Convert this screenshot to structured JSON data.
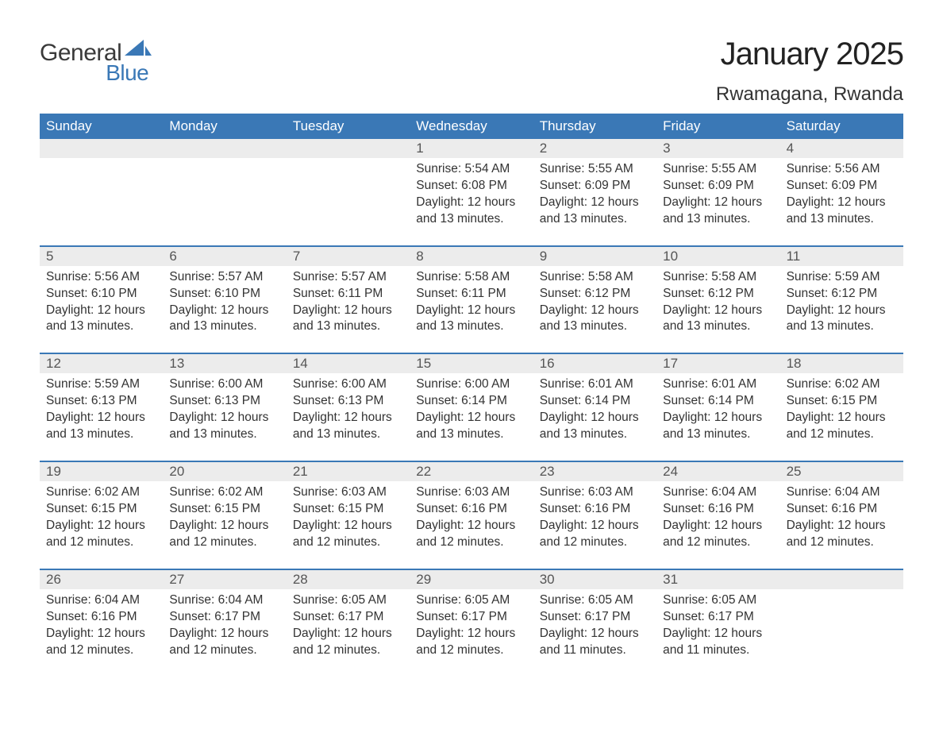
{
  "logo": {
    "word1": "General",
    "word2": "Blue",
    "sail_color": "#3a78b6"
  },
  "title": "January 2025",
  "location": "Rwamagana, Rwanda",
  "colors": {
    "header_bg": "#3a78b6",
    "header_text": "#ffffff",
    "daynum_band_bg": "#ececec",
    "separator": "#3a78b6",
    "body_text": "#333333",
    "page_bg": "#ffffff"
  },
  "weekdays": [
    "Sunday",
    "Monday",
    "Tuesday",
    "Wednesday",
    "Thursday",
    "Friday",
    "Saturday"
  ],
  "layout": {
    "columns": 7,
    "weekday_fontsize": 17,
    "title_fontsize": 40,
    "location_fontsize": 24,
    "daynum_fontsize": 17,
    "body_fontsize": 15.5
  },
  "label_prefixes": {
    "sunrise": "Sunrise: ",
    "sunset": "Sunset: ",
    "daylight": "Daylight: "
  },
  "weeks": [
    [
      null,
      null,
      null,
      {
        "n": "1",
        "sunrise": "5:54 AM",
        "sunset": "6:08 PM",
        "daylight": "12 hours and 13 minutes."
      },
      {
        "n": "2",
        "sunrise": "5:55 AM",
        "sunset": "6:09 PM",
        "daylight": "12 hours and 13 minutes."
      },
      {
        "n": "3",
        "sunrise": "5:55 AM",
        "sunset": "6:09 PM",
        "daylight": "12 hours and 13 minutes."
      },
      {
        "n": "4",
        "sunrise": "5:56 AM",
        "sunset": "6:09 PM",
        "daylight": "12 hours and 13 minutes."
      }
    ],
    [
      {
        "n": "5",
        "sunrise": "5:56 AM",
        "sunset": "6:10 PM",
        "daylight": "12 hours and 13 minutes."
      },
      {
        "n": "6",
        "sunrise": "5:57 AM",
        "sunset": "6:10 PM",
        "daylight": "12 hours and 13 minutes."
      },
      {
        "n": "7",
        "sunrise": "5:57 AM",
        "sunset": "6:11 PM",
        "daylight": "12 hours and 13 minutes."
      },
      {
        "n": "8",
        "sunrise": "5:58 AM",
        "sunset": "6:11 PM",
        "daylight": "12 hours and 13 minutes."
      },
      {
        "n": "9",
        "sunrise": "5:58 AM",
        "sunset": "6:12 PM",
        "daylight": "12 hours and 13 minutes."
      },
      {
        "n": "10",
        "sunrise": "5:58 AM",
        "sunset": "6:12 PM",
        "daylight": "12 hours and 13 minutes."
      },
      {
        "n": "11",
        "sunrise": "5:59 AM",
        "sunset": "6:12 PM",
        "daylight": "12 hours and 13 minutes."
      }
    ],
    [
      {
        "n": "12",
        "sunrise": "5:59 AM",
        "sunset": "6:13 PM",
        "daylight": "12 hours and 13 minutes."
      },
      {
        "n": "13",
        "sunrise": "6:00 AM",
        "sunset": "6:13 PM",
        "daylight": "12 hours and 13 minutes."
      },
      {
        "n": "14",
        "sunrise": "6:00 AM",
        "sunset": "6:13 PM",
        "daylight": "12 hours and 13 minutes."
      },
      {
        "n": "15",
        "sunrise": "6:00 AM",
        "sunset": "6:14 PM",
        "daylight": "12 hours and 13 minutes."
      },
      {
        "n": "16",
        "sunrise": "6:01 AM",
        "sunset": "6:14 PM",
        "daylight": "12 hours and 13 minutes."
      },
      {
        "n": "17",
        "sunrise": "6:01 AM",
        "sunset": "6:14 PM",
        "daylight": "12 hours and 13 minutes."
      },
      {
        "n": "18",
        "sunrise": "6:02 AM",
        "sunset": "6:15 PM",
        "daylight": "12 hours and 12 minutes."
      }
    ],
    [
      {
        "n": "19",
        "sunrise": "6:02 AM",
        "sunset": "6:15 PM",
        "daylight": "12 hours and 12 minutes."
      },
      {
        "n": "20",
        "sunrise": "6:02 AM",
        "sunset": "6:15 PM",
        "daylight": "12 hours and 12 minutes."
      },
      {
        "n": "21",
        "sunrise": "6:03 AM",
        "sunset": "6:15 PM",
        "daylight": "12 hours and 12 minutes."
      },
      {
        "n": "22",
        "sunrise": "6:03 AM",
        "sunset": "6:16 PM",
        "daylight": "12 hours and 12 minutes."
      },
      {
        "n": "23",
        "sunrise": "6:03 AM",
        "sunset": "6:16 PM",
        "daylight": "12 hours and 12 minutes."
      },
      {
        "n": "24",
        "sunrise": "6:04 AM",
        "sunset": "6:16 PM",
        "daylight": "12 hours and 12 minutes."
      },
      {
        "n": "25",
        "sunrise": "6:04 AM",
        "sunset": "6:16 PM",
        "daylight": "12 hours and 12 minutes."
      }
    ],
    [
      {
        "n": "26",
        "sunrise": "6:04 AM",
        "sunset": "6:16 PM",
        "daylight": "12 hours and 12 minutes."
      },
      {
        "n": "27",
        "sunrise": "6:04 AM",
        "sunset": "6:17 PM",
        "daylight": "12 hours and 12 minutes."
      },
      {
        "n": "28",
        "sunrise": "6:05 AM",
        "sunset": "6:17 PM",
        "daylight": "12 hours and 12 minutes."
      },
      {
        "n": "29",
        "sunrise": "6:05 AM",
        "sunset": "6:17 PM",
        "daylight": "12 hours and 12 minutes."
      },
      {
        "n": "30",
        "sunrise": "6:05 AM",
        "sunset": "6:17 PM",
        "daylight": "12 hours and 11 minutes."
      },
      {
        "n": "31",
        "sunrise": "6:05 AM",
        "sunset": "6:17 PM",
        "daylight": "12 hours and 11 minutes."
      },
      null
    ]
  ]
}
